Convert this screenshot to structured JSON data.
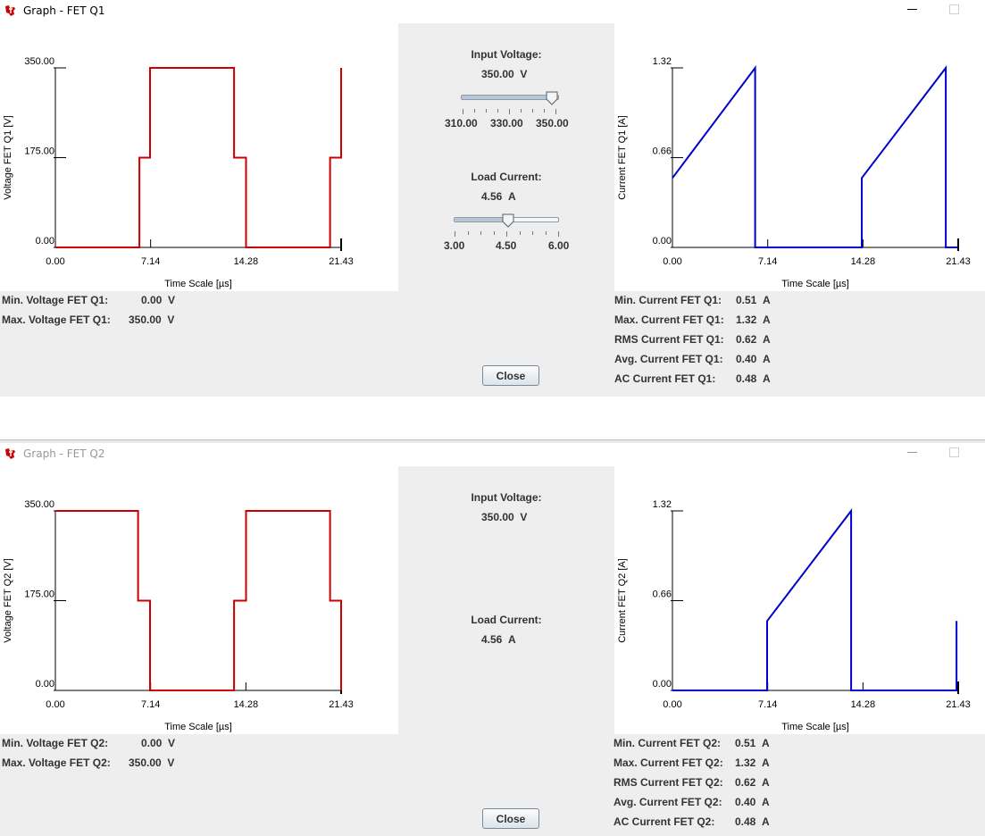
{
  "windows": [
    {
      "title": "Graph - FET Q1",
      "voltage_chart": {
        "type": "line",
        "ylabel": "Voltage FET Q1 [V]",
        "xlabel": "Time Scale  [µs]",
        "xticks": [
          "0.00",
          "7.14",
          "14.28",
          "21.43"
        ],
        "yticks": [
          "0.00",
          "175.00",
          "350.00"
        ],
        "xlim": [
          0,
          21.43
        ],
        "ylim": [
          0,
          350
        ],
        "color": "#cc0000",
        "x": [
          0,
          6.3,
          6.3,
          7.1,
          7.1,
          13.4,
          13.4,
          14.3,
          14.3,
          20.6,
          20.6,
          21.43,
          21.43,
          21.43
        ],
        "y": [
          0,
          0,
          175,
          175,
          350,
          350,
          175,
          175,
          0,
          0,
          175,
          175,
          220,
          350
        ]
      },
      "current_chart": {
        "type": "line",
        "ylabel": "Current FET Q1 [A]",
        "xlabel": "Time Scale  [µs]",
        "xticks": [
          "0.00",
          "7.14",
          "14.28",
          "21.43"
        ],
        "yticks": [
          "0.00",
          "0.66",
          "1.32"
        ],
        "xlim": [
          0,
          21.43
        ],
        "ylim": [
          0,
          1.32
        ],
        "color": "#0000cc",
        "x": [
          0,
          6.2,
          6.2,
          14.2,
          14.2,
          20.5,
          20.5,
          21.43
        ],
        "y": [
          0.51,
          1.32,
          0,
          0,
          0.51,
          1.32,
          0,
          0
        ]
      },
      "input_voltage": {
        "label": "Input Voltage:",
        "value": "350.00",
        "unit": "V",
        "min": 310,
        "max": 350,
        "pos": 350,
        "tick_labels": [
          "310.00",
          "330.00",
          "350.00"
        ]
      },
      "load_current": {
        "label": "Load Current:",
        "value": "4.56",
        "unit": "A",
        "min": 3,
        "max": 6,
        "pos": 4.56,
        "tick_labels": [
          "3.00",
          "4.50",
          "6.00"
        ]
      },
      "left_stats": [
        {
          "label": "Min. Voltage FET Q1:",
          "value": "0.00",
          "unit": "V"
        },
        {
          "label": "Max. Voltage FET Q1:",
          "value": "350.00",
          "unit": "V"
        }
      ],
      "right_stats": [
        {
          "label": "Min. Current FET Q1:",
          "value": "0.51",
          "unit": "A"
        },
        {
          "label": "Max. Current FET Q1:",
          "value": "1.32",
          "unit": "A"
        },
        {
          "label": "RMS Current FET Q1:",
          "value": "0.62",
          "unit": "A"
        },
        {
          "label": "Avg. Current FET Q1:",
          "value": "0.40",
          "unit": "A"
        },
        {
          "label": "AC Current FET Q1:",
          "value": "0.48",
          "unit": "A"
        }
      ],
      "close_label": "Close"
    },
    {
      "title": "Graph - FET Q2",
      "voltage_chart": {
        "type": "line",
        "ylabel": "Voltage FET Q2 [V]",
        "xlabel": "Time Scale  [µs]",
        "xticks": [
          "0.00",
          "7.14",
          "14.28",
          "21.43"
        ],
        "yticks": [
          "0.00",
          "175.00",
          "350.00"
        ],
        "xlim": [
          0,
          21.43
        ],
        "ylim": [
          0,
          350
        ],
        "color": "#cc0000",
        "x": [
          0,
          6.2,
          6.2,
          7.1,
          7.1,
          13.4,
          13.4,
          14.3,
          14.3,
          20.6,
          20.6,
          21.43,
          21.43,
          21.43
        ],
        "y": [
          350,
          350,
          175,
          175,
          0,
          0,
          175,
          175,
          350,
          350,
          175,
          175,
          130,
          0
        ]
      },
      "current_chart": {
        "type": "line",
        "ylabel": "Current FET Q2 [A]",
        "xlabel": "Time Scale  [µs]",
        "xticks": [
          "0.00",
          "7.14",
          "14.28",
          "21.43"
        ],
        "yticks": [
          "0.00",
          "0.66",
          "1.32"
        ],
        "xlim": [
          0,
          21.43
        ],
        "ylim": [
          0,
          1.32
        ],
        "color": "#0000cc",
        "x": [
          0,
          7.1,
          7.1,
          13.4,
          13.4,
          21.3,
          21.3
        ],
        "y": [
          0,
          0,
          0.51,
          1.32,
          0,
          0,
          0.51
        ]
      },
      "input_voltage": {
        "label": "Input Voltage:",
        "value": "350.00",
        "unit": "V"
      },
      "load_current": {
        "label": "Load Current:",
        "value": "4.56",
        "unit": "A"
      },
      "left_stats": [
        {
          "label": "Min. Voltage FET Q2:",
          "value": "0.00",
          "unit": "V"
        },
        {
          "label": "Max. Voltage FET Q2:",
          "value": "350.00",
          "unit": "V"
        }
      ],
      "right_stats": [
        {
          "label": "Min. Current FET Q2:",
          "value": "0.51",
          "unit": "A"
        },
        {
          "label": "Max. Current FET Q2:",
          "value": "1.32",
          "unit": "A"
        },
        {
          "label": "RMS Current FET Q2:",
          "value": "0.62",
          "unit": "A"
        },
        {
          "label": "Avg. Current FET Q2:",
          "value": "0.40",
          "unit": "A"
        },
        {
          "label": "AC Current FET Q2:",
          "value": "0.48",
          "unit": "A"
        }
      ],
      "close_label": "Close"
    }
  ],
  "icons": {
    "app_logo": "ti-logo-icon",
    "minimize": "minimize-icon",
    "maximize": "maximize-icon"
  }
}
